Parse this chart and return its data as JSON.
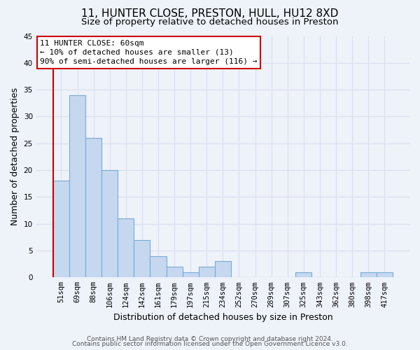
{
  "title": "11, HUNTER CLOSE, PRESTON, HULL, HU12 8XD",
  "subtitle": "Size of property relative to detached houses in Preston",
  "xlabel": "Distribution of detached houses by size in Preston",
  "ylabel": "Number of detached properties",
  "bar_labels": [
    "51sqm",
    "69sqm",
    "88sqm",
    "106sqm",
    "124sqm",
    "142sqm",
    "161sqm",
    "179sqm",
    "197sqm",
    "215sqm",
    "234sqm",
    "252sqm",
    "270sqm",
    "289sqm",
    "307sqm",
    "325sqm",
    "343sqm",
    "362sqm",
    "380sqm",
    "398sqm",
    "417sqm"
  ],
  "bar_values": [
    18,
    34,
    26,
    20,
    11,
    7,
    4,
    2,
    1,
    2,
    3,
    0,
    0,
    0,
    0,
    1,
    0,
    0,
    0,
    1,
    1
  ],
  "bar_color": "#c5d8f0",
  "bar_edge_color": "#7aaad4",
  "highlight_color": "#cc0000",
  "annotation_box_text": "11 HUNTER CLOSE: 60sqm\n← 10% of detached houses are smaller (13)\n90% of semi-detached houses are larger (116) →",
  "ylim": [
    0,
    45
  ],
  "yticks": [
    0,
    5,
    10,
    15,
    20,
    25,
    30,
    35,
    40,
    45
  ],
  "footer_line1": "Contains HM Land Registry data © Crown copyright and database right 2024.",
  "footer_line2": "Contains public sector information licensed under the Open Government Licence v3.0.",
  "background_color": "#eef2f9",
  "grid_color": "#d8dff0",
  "title_fontsize": 11,
  "subtitle_fontsize": 9.5,
  "axis_label_fontsize": 9,
  "tick_fontsize": 7.5,
  "annotation_fontsize": 8,
  "footer_fontsize": 6.5
}
